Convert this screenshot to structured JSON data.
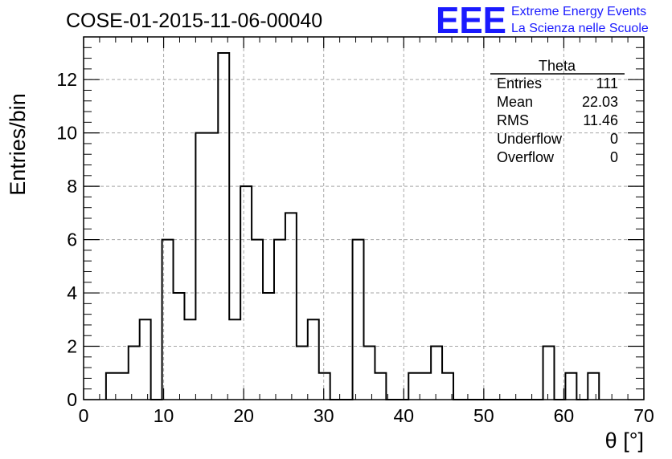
{
  "header": {
    "title": "COSE-01-2015-11-06-00040",
    "logo_mark": "EEE",
    "logo_line1": "Extreme Energy Events",
    "logo_line2": "La Scienza nelle Scuole",
    "logo_color": "#1a1aff"
  },
  "chart_data": {
    "type": "bar",
    "histogram": true,
    "xlabel": "θ [°]",
    "ylabel": "Entries/bin",
    "xlim": [
      0,
      70
    ],
    "ylim": [
      0,
      13.6
    ],
    "bin_width": 1.4,
    "x_ticks": [
      "0",
      "10",
      "20",
      "30",
      "40",
      "50",
      "60",
      "70"
    ],
    "y_ticks": [
      "0",
      "2",
      "4",
      "6",
      "8",
      "10",
      "12"
    ],
    "grid": true,
    "line_color": "#000000",
    "bins": [
      {
        "x": 2.8,
        "value": 1
      },
      {
        "x": 4.2,
        "value": 1
      },
      {
        "x": 5.6,
        "value": 2
      },
      {
        "x": 7.0,
        "value": 3
      },
      {
        "x": 8.4,
        "value": 0
      },
      {
        "x": 9.8,
        "value": 6
      },
      {
        "x": 11.2,
        "value": 4
      },
      {
        "x": 12.6,
        "value": 3
      },
      {
        "x": 14.0,
        "value": 10
      },
      {
        "x": 15.4,
        "value": 10
      },
      {
        "x": 16.8,
        "value": 13
      },
      {
        "x": 18.2,
        "value": 3
      },
      {
        "x": 19.6,
        "value": 8
      },
      {
        "x": 21.0,
        "value": 6
      },
      {
        "x": 22.4,
        "value": 4
      },
      {
        "x": 23.8,
        "value": 6
      },
      {
        "x": 25.2,
        "value": 7
      },
      {
        "x": 26.6,
        "value": 2
      },
      {
        "x": 28.0,
        "value": 3
      },
      {
        "x": 29.4,
        "value": 1
      },
      {
        "x": 30.8,
        "value": 0
      },
      {
        "x": 32.2,
        "value": 0
      },
      {
        "x": 33.6,
        "value": 6
      },
      {
        "x": 35.0,
        "value": 2
      },
      {
        "x": 36.4,
        "value": 1
      },
      {
        "x": 37.8,
        "value": 0
      },
      {
        "x": 39.2,
        "value": 0
      },
      {
        "x": 40.6,
        "value": 1
      },
      {
        "x": 42.0,
        "value": 1
      },
      {
        "x": 43.4,
        "value": 2
      },
      {
        "x": 44.8,
        "value": 1
      },
      {
        "x": 46.2,
        "value": 0
      },
      {
        "x": 47.6,
        "value": 0
      },
      {
        "x": 49.0,
        "value": 0
      },
      {
        "x": 50.4,
        "value": 0
      },
      {
        "x": 51.8,
        "value": 0
      },
      {
        "x": 53.2,
        "value": 0
      },
      {
        "x": 54.6,
        "value": 0
      },
      {
        "x": 56.0,
        "value": 0
      },
      {
        "x": 57.4,
        "value": 2
      },
      {
        "x": 58.8,
        "value": 0
      },
      {
        "x": 60.2,
        "value": 1
      },
      {
        "x": 61.6,
        "value": 0
      },
      {
        "x": 63.0,
        "value": 1
      }
    ],
    "stats_box": {
      "title": "Theta",
      "rows": [
        {
          "label": "Entries",
          "value": "111"
        },
        {
          "label": "Mean",
          "value": "22.03"
        },
        {
          "label": "RMS",
          "value": "11.46"
        },
        {
          "label": "Underflow",
          "value": "0"
        },
        {
          "label": "Overflow",
          "value": "0"
        }
      ]
    }
  }
}
